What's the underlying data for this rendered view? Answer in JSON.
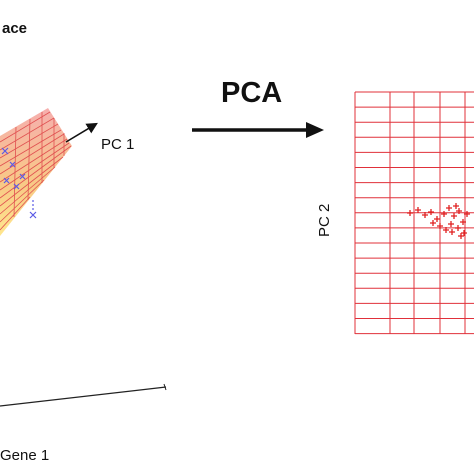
{
  "left_panel": {
    "title_fragment": "ace",
    "pc1_label": "PC 1",
    "gene_axis_label": "Gene 1"
  },
  "transform": {
    "label": "PCA"
  },
  "right_panel": {
    "y_axis_label": "PC 2"
  },
  "colors": {
    "grid_red": "#e0303a",
    "point_red": "#e02020",
    "point_blue": "#5a5ae6",
    "gradient_orange": "#f0a030",
    "gradient_yellow": "#ffe070",
    "text": "#111111"
  }
}
